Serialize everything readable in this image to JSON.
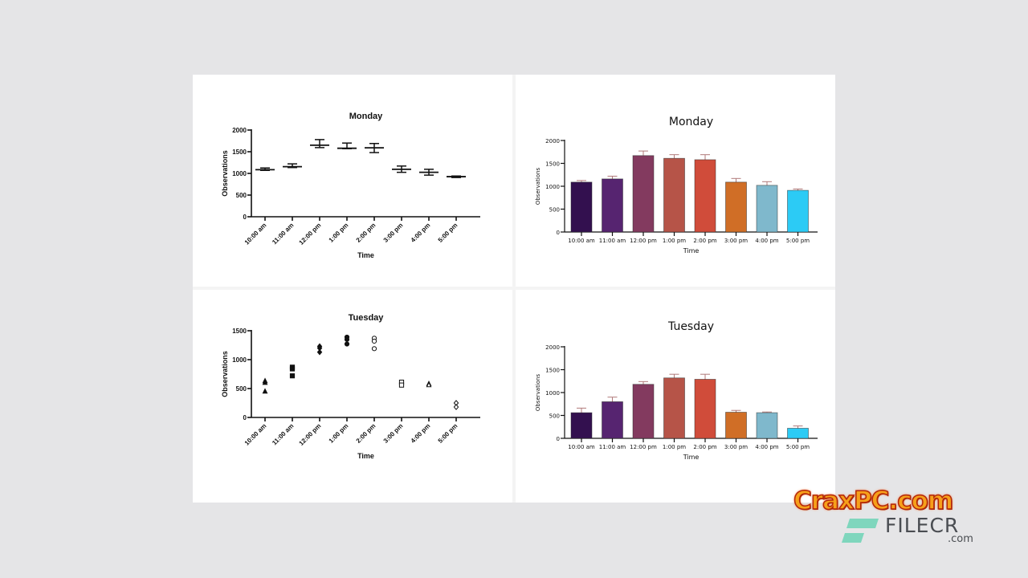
{
  "chart_data": [
    {
      "id": "monday_box",
      "type": "box",
      "title": "Monday",
      "xlabel": "Time",
      "ylabel": "Observations",
      "categories": [
        "10:00 am",
        "11:00 am",
        "12:00 pm",
        "1:00 pm",
        "2:00 pm",
        "3:00 pm",
        "4:00 pm",
        "5:00 pm"
      ],
      "yticks": [
        0,
        500,
        1000,
        1500,
        2000
      ],
      "ylim": [
        0,
        2000
      ],
      "series": [
        {
          "name": "Monday",
          "median": [
            1085,
            1155,
            1650,
            1580,
            1590,
            1095,
            1025,
            925
          ],
          "min": [
            1070,
            1135,
            1595,
            1570,
            1480,
            1025,
            960,
            905
          ],
          "max": [
            1125,
            1220,
            1780,
            1700,
            1690,
            1170,
            1095,
            940
          ]
        }
      ],
      "x_tick_rotation": "45deg"
    },
    {
      "id": "monday_bar",
      "type": "bar",
      "title": "Monday",
      "xlabel": "Time",
      "ylabel": "Observations",
      "categories": [
        "10:00 am",
        "11:00 am",
        "12:00 pm",
        "1:00 pm",
        "2:00 pm",
        "3:00 pm",
        "4:00 pm",
        "5:00 pm"
      ],
      "yticks": [
        0,
        500,
        1000,
        1500,
        2000
      ],
      "ylim": [
        0,
        2000
      ],
      "values": [
        1090,
        1160,
        1670,
        1610,
        1580,
        1090,
        1020,
        910
      ],
      "error_upper": [
        1125,
        1220,
        1770,
        1690,
        1690,
        1170,
        1100,
        940
      ],
      "colors": [
        "#33104f",
        "#562470",
        "#833a5f",
        "#b65448",
        "#d04c3a",
        "#d06e26",
        "#7fb8cc",
        "#2ccbf5"
      ]
    },
    {
      "id": "tuesday_scatter",
      "type": "scatter",
      "title": "Tuesday",
      "xlabel": "Time",
      "ylabel": "Observations",
      "categories": [
        "10:00 am",
        "11:00 am",
        "12:00 pm",
        "1:00 pm",
        "2:00 pm",
        "3:00 pm",
        "4:00 pm",
        "5:00 pm"
      ],
      "yticks": [
        0,
        500,
        1000,
        1500
      ],
      "ylim": [
        0,
        1500
      ],
      "points": [
        {
          "category": "10:00 am",
          "marker": "triangle-filled",
          "values": [
            630,
            600,
            450
          ]
        },
        {
          "category": "11:00 am",
          "marker": "square-filled",
          "values": [
            870,
            840,
            720
          ]
        },
        {
          "category": "12:00 pm",
          "marker": "diamond-filled",
          "values": [
            1230,
            1200,
            1130
          ]
        },
        {
          "category": "1:00 pm",
          "marker": "circle-filled",
          "values": [
            1390,
            1350,
            1270
          ]
        },
        {
          "category": "2:00 pm",
          "marker": "circle-open",
          "values": [
            1370,
            1320,
            1190
          ]
        },
        {
          "category": "3:00 pm",
          "marker": "square-open",
          "values": [
            610,
            560
          ]
        },
        {
          "category": "4:00 pm",
          "marker": "triangle-open",
          "values": [
            580,
            560
          ]
        },
        {
          "category": "5:00 pm",
          "marker": "diamond-open",
          "values": [
            250,
            180
          ]
        }
      ],
      "x_tick_rotation": "45deg"
    },
    {
      "id": "tuesday_bar",
      "type": "bar",
      "title": "Tuesday",
      "xlabel": "Time",
      "ylabel": "Observations",
      "categories": [
        "10:00 am",
        "11:00 am",
        "12:00 pm",
        "1:00 pm",
        "2:00 pm",
        "3:00 pm",
        "4:00 pm",
        "5:00 pm"
      ],
      "yticks": [
        0,
        500,
        1000,
        1500,
        2000
      ],
      "ylim": [
        0,
        2000
      ],
      "values": [
        560,
        800,
        1180,
        1320,
        1290,
        570,
        560,
        220
      ],
      "error_upper": [
        660,
        900,
        1240,
        1400,
        1400,
        610,
        575,
        270
      ],
      "colors": [
        "#33104f",
        "#562470",
        "#833a5f",
        "#b65448",
        "#d04c3a",
        "#d06e26",
        "#7fb8cc",
        "#2ccbf5"
      ]
    }
  ],
  "watermark": {
    "primary": "CraxPC.com",
    "secondary": "FILECR",
    "secondary_suffix": ".com"
  }
}
